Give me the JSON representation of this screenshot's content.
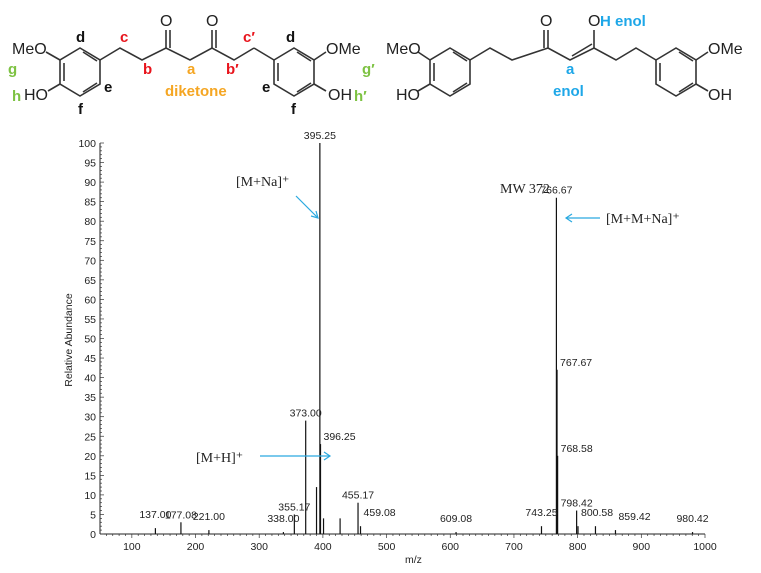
{
  "structures": {
    "diketone": {
      "groups": {
        "meo_left": "MeO",
        "ho_left": "HO",
        "ome_right": "OMe",
        "oh_right": "OH",
        "o1": "O",
        "o2": "O"
      },
      "labels": {
        "d_left": "d",
        "e_left": "e",
        "f_left": "f",
        "g": "g",
        "h": "h",
        "c": "c",
        "b": "b",
        "a": "a",
        "b_prime": "b′",
        "c_prime": "c′",
        "d_right": "d",
        "e_right": "e",
        "f_right": "f",
        "g_prime": "g′",
        "h_prime": "h′",
        "name": "diketone"
      },
      "colors": {
        "red": "#e8141c",
        "orange": "#f5a623",
        "green": "#7dc242",
        "black": "#111111"
      }
    },
    "enol": {
      "groups": {
        "meo_left": "MeO",
        "ho_left": "HO",
        "ome_right": "OMe",
        "oh_right": "OH",
        "o1": "O",
        "oh_top": "O"
      },
      "labels": {
        "h_enol": "H enol",
        "a": "a",
        "name": "enol"
      },
      "colors": {
        "blue": "#1ea7e8"
      }
    }
  },
  "annotations": {
    "m_na": "[M+Na]⁺",
    "mw": "MW 372",
    "m_m_na": "[M+M+Na]⁺",
    "m_h": "[M+H]⁺",
    "arrow_color": "#2aa9e0"
  },
  "chart_data": {
    "type": "bar",
    "xlabel": "m/z",
    "ylabel": "Relative Abundance",
    "xlim": [
      50,
      1000
    ],
    "ylim": [
      0,
      100
    ],
    "xticks": [
      100,
      200,
      300,
      400,
      500,
      600,
      700,
      800,
      900,
      1000
    ],
    "yticks": [
      0,
      5,
      10,
      15,
      20,
      25,
      30,
      35,
      40,
      45,
      50,
      55,
      60,
      65,
      70,
      75,
      80,
      85,
      90,
      95,
      100
    ],
    "grid": false,
    "peaks": [
      {
        "mz": 137.0,
        "abundance": 1.5,
        "label": "137.00"
      },
      {
        "mz": 177.08,
        "abundance": 3,
        "label": "177.08"
      },
      {
        "mz": 221.0,
        "abundance": 1,
        "label": "221.00"
      },
      {
        "mz": 338.0,
        "abundance": 0.5,
        "label": "338.00"
      },
      {
        "mz": 355.17,
        "abundance": 5,
        "label": "355.17"
      },
      {
        "mz": 373.0,
        "abundance": 29,
        "label": "373.00"
      },
      {
        "mz": 390.0,
        "abundance": 12,
        "label": ""
      },
      {
        "mz": 395.25,
        "abundance": 100,
        "label": "395.25"
      },
      {
        "mz": 396.25,
        "abundance": 23,
        "label": "396.25"
      },
      {
        "mz": 401.0,
        "abundance": 4,
        "label": ""
      },
      {
        "mz": 427.0,
        "abundance": 4,
        "label": ""
      },
      {
        "mz": 455.17,
        "abundance": 8,
        "label": "455.17"
      },
      {
        "mz": 459.08,
        "abundance": 2,
        "label": "459.08"
      },
      {
        "mz": 609.08,
        "abundance": 0.5,
        "label": "609.08"
      },
      {
        "mz": 743.25,
        "abundance": 2,
        "label": "743.25"
      },
      {
        "mz": 766.67,
        "abundance": 86,
        "label": "766.67"
      },
      {
        "mz": 767.67,
        "abundance": 42,
        "label": "767.67"
      },
      {
        "mz": 768.58,
        "abundance": 20,
        "label": "768.58"
      },
      {
        "mz": 798.42,
        "abundance": 6,
        "label": "798.42"
      },
      {
        "mz": 800.58,
        "abundance": 2,
        "label": "800.58"
      },
      {
        "mz": 828.0,
        "abundance": 2,
        "label": ""
      },
      {
        "mz": 859.42,
        "abundance": 1,
        "label": "859.42"
      },
      {
        "mz": 980.42,
        "abundance": 0.5,
        "label": "980.42"
      }
    ]
  }
}
